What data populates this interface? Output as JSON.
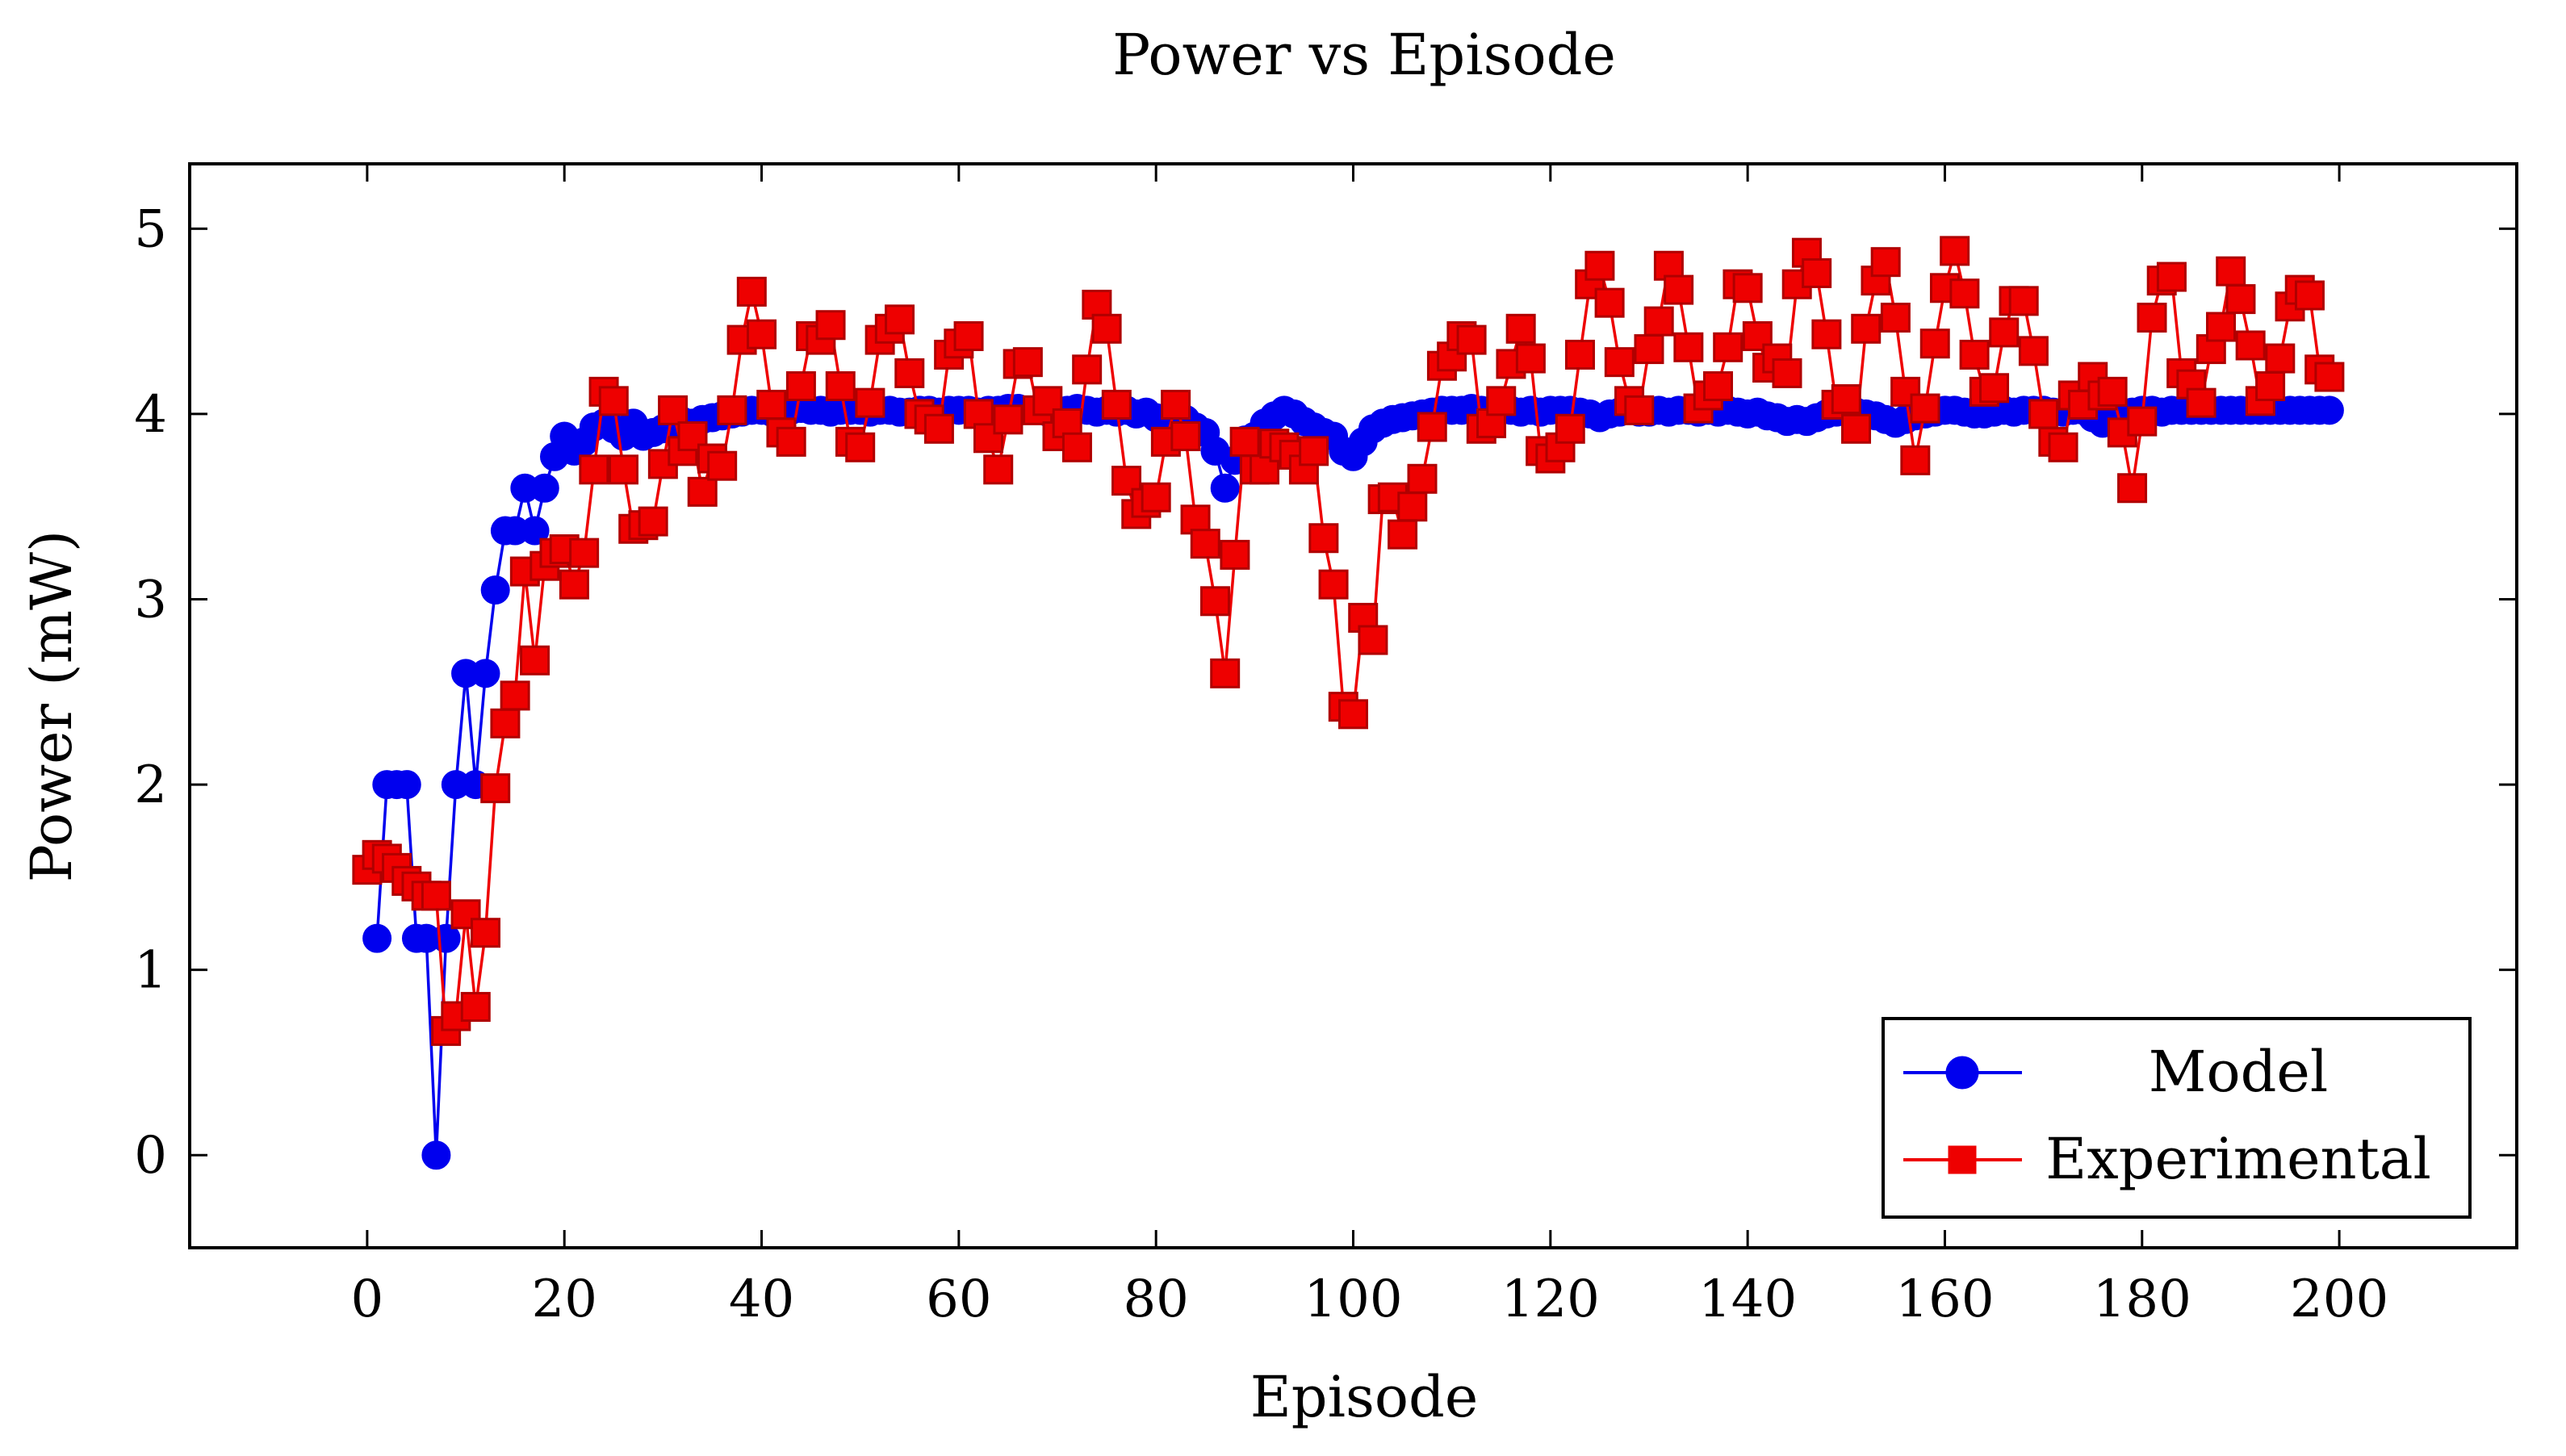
{
  "colors": {
    "model": "#0000ee",
    "experimental": "#ee0000",
    "axis": "#000000",
    "background": "#ffffff"
  },
  "chart_data": {
    "type": "line",
    "title": "Power vs Episode",
    "xlabel": "Episode",
    "ylabel": "Power (mW)",
    "xlim": [
      -18,
      218
    ],
    "ylim": [
      -0.5,
      5.35
    ],
    "xticks": [
      0,
      20,
      40,
      60,
      80,
      100,
      120,
      140,
      160,
      180,
      200
    ],
    "yticks": [
      0,
      1,
      2,
      3,
      4,
      5
    ],
    "grid": false,
    "legend_position": "bottom-right",
    "series": [
      {
        "name": "Model",
        "marker": "circle",
        "color": "#0000ee",
        "x": [
          1,
          2,
          3,
          4,
          5,
          6,
          7,
          8,
          9,
          10,
          11,
          12,
          13,
          14,
          15,
          16,
          17,
          18,
          19,
          20,
          21,
          22,
          23,
          24,
          25,
          26,
          27,
          28,
          29,
          30,
          31,
          32,
          33,
          34,
          35,
          36,
          37,
          38,
          39,
          40,
          41,
          42,
          43,
          44,
          45,
          46,
          47,
          48,
          49,
          50,
          51,
          52,
          53,
          54,
          55,
          56,
          57,
          58,
          59,
          60,
          61,
          62,
          63,
          64,
          65,
          66,
          67,
          68,
          69,
          70,
          71,
          72,
          73,
          74,
          75,
          76,
          77,
          78,
          79,
          80,
          81,
          82,
          83,
          84,
          85,
          86,
          87,
          88,
          89,
          90,
          91,
          92,
          93,
          94,
          95,
          96,
          97,
          98,
          99,
          100,
          101,
          102,
          103,
          104,
          105,
          106,
          107,
          108,
          109,
          110,
          111,
          112,
          113,
          114,
          115,
          116,
          117,
          118,
          119,
          120,
          121,
          122,
          123,
          124,
          125,
          126,
          127,
          128,
          129,
          130,
          131,
          132,
          133,
          134,
          135,
          136,
          137,
          138,
          139,
          140,
          141,
          142,
          143,
          144,
          145,
          146,
          147,
          148,
          149,
          150,
          151,
          152,
          153,
          154,
          155,
          156,
          157,
          158,
          159,
          160,
          161,
          162,
          163,
          164,
          165,
          166,
          167,
          168,
          169,
          170,
          171,
          172,
          173,
          174,
          175,
          176,
          177,
          178,
          179,
          180,
          181,
          182,
          183,
          184,
          185,
          186,
          187,
          188,
          189,
          190,
          191,
          192,
          193,
          194,
          195,
          196,
          197,
          198,
          199
        ],
        "values": [
          1.17,
          2.0,
          2.0,
          2.0,
          1.17,
          1.17,
          0.0,
          1.17,
          2.0,
          2.6,
          2.0,
          2.6,
          3.05,
          3.37,
          3.37,
          3.6,
          3.37,
          3.6,
          3.77,
          3.88,
          3.8,
          3.85,
          3.93,
          3.95,
          3.92,
          3.88,
          3.95,
          3.88,
          3.9,
          3.92,
          3.94,
          3.96,
          3.95,
          3.97,
          3.98,
          3.99,
          4.0,
          4.01,
          4.02,
          4.02,
          4.01,
          4.02,
          4.02,
          4.03,
          4.02,
          4.02,
          4.01,
          4.02,
          4.02,
          4.02,
          4.01,
          4.02,
          4.02,
          4.01,
          4.01,
          4.02,
          4.02,
          4.01,
          4.02,
          4.02,
          4.02,
          4.01,
          4.02,
          4.02,
          4.03,
          4.03,
          4.02,
          4.02,
          4.01,
          4.02,
          4.02,
          4.03,
          4.02,
          4.01,
          4.02,
          4.01,
          4.02,
          4.0,
          4.01,
          3.98,
          3.96,
          3.95,
          3.97,
          3.93,
          3.9,
          3.8,
          3.6,
          3.75,
          3.86,
          3.88,
          3.95,
          3.99,
          4.02,
          4.0,
          3.96,
          3.93,
          3.9,
          3.88,
          3.8,
          3.77,
          3.85,
          3.92,
          3.95,
          3.97,
          3.98,
          3.99,
          4.0,
          4.01,
          4.02,
          4.02,
          4.02,
          4.03,
          4.02,
          4.02,
          4.02,
          4.02,
          4.01,
          4.02,
          4.01,
          4.02,
          4.02,
          4.02,
          4.01,
          4.0,
          3.98,
          4.0,
          4.01,
          4.02,
          4.01,
          4.01,
          4.02,
          4.01,
          4.02,
          4.02,
          4.01,
          4.02,
          4.01,
          4.02,
          4.01,
          4.0,
          4.01,
          3.99,
          3.98,
          3.96,
          3.97,
          3.96,
          3.98,
          4.0,
          4.01,
          4.02,
          4.01,
          4.0,
          3.99,
          3.97,
          3.95,
          3.97,
          3.99,
          4.0,
          4.01,
          4.02,
          4.02,
          4.01,
          4.0,
          4.0,
          4.01,
          4.02,
          4.01,
          4.02,
          4.02,
          4.02,
          4.01,
          4.01,
          4.02,
          4.02,
          3.98,
          3.95,
          3.97,
          3.99,
          4.01,
          4.02,
          4.02,
          4.01,
          4.02,
          4.02,
          4.02,
          4.02,
          4.02,
          4.02,
          4.02,
          4.02,
          4.02,
          4.02,
          4.02,
          4.02,
          4.02,
          4.02,
          4.02,
          4.02,
          4.02
        ]
      },
      {
        "name": "Experimental",
        "marker": "square",
        "color": "#ee0000",
        "x": [
          0,
          1,
          2,
          3,
          4,
          5,
          6,
          7,
          8,
          9,
          10,
          11,
          12,
          13,
          14,
          15,
          16,
          17,
          18,
          19,
          20,
          21,
          22,
          23,
          24,
          25,
          26,
          27,
          28,
          29,
          30,
          31,
          32,
          33,
          34,
          35,
          36,
          37,
          38,
          39,
          40,
          41,
          42,
          43,
          44,
          45,
          46,
          47,
          48,
          49,
          50,
          51,
          52,
          53,
          54,
          55,
          56,
          57,
          58,
          59,
          60,
          61,
          62,
          63,
          64,
          65,
          66,
          67,
          68,
          69,
          70,
          71,
          72,
          73,
          74,
          75,
          76,
          77,
          78,
          79,
          80,
          81,
          82,
          83,
          84,
          85,
          86,
          87,
          88,
          89,
          90,
          91,
          92,
          93,
          94,
          95,
          96,
          97,
          98,
          99,
          100,
          101,
          102,
          103,
          104,
          105,
          106,
          107,
          108,
          109,
          110,
          111,
          112,
          113,
          114,
          115,
          116,
          117,
          118,
          119,
          120,
          121,
          122,
          123,
          124,
          125,
          126,
          127,
          128,
          129,
          130,
          131,
          132,
          133,
          134,
          135,
          136,
          137,
          138,
          139,
          140,
          141,
          142,
          143,
          144,
          145,
          146,
          147,
          148,
          149,
          150,
          151,
          152,
          153,
          154,
          155,
          156,
          157,
          158,
          159,
          160,
          161,
          162,
          163,
          164,
          165,
          166,
          167,
          168,
          169,
          170,
          171,
          172,
          173,
          174,
          175,
          176,
          177,
          178,
          179,
          180,
          181,
          182,
          183,
          184,
          185,
          186,
          187,
          188,
          189,
          190,
          191,
          192,
          193,
          194,
          195,
          196,
          197,
          198,
          199
        ],
        "values": [
          1.54,
          1.62,
          1.6,
          1.55,
          1.48,
          1.45,
          1.4,
          1.4,
          0.67,
          0.75,
          1.3,
          0.8,
          1.2,
          1.98,
          2.33,
          2.48,
          3.15,
          2.67,
          3.18,
          3.25,
          3.27,
          3.08,
          3.25,
          3.7,
          4.12,
          4.07,
          3.7,
          3.38,
          3.4,
          3.42,
          3.73,
          4.02,
          3.8,
          3.88,
          3.58,
          3.76,
          3.72,
          4.02,
          4.4,
          4.66,
          4.43,
          4.05,
          3.9,
          3.85,
          4.15,
          4.42,
          4.4,
          4.48,
          4.15,
          3.85,
          3.82,
          4.06,
          4.4,
          4.46,
          4.51,
          4.22,
          4.0,
          3.97,
          3.92,
          4.32,
          4.38,
          4.42,
          4.0,
          3.87,
          3.7,
          3.97,
          4.27,
          4.28,
          4.02,
          4.07,
          3.88,
          3.95,
          3.82,
          4.24,
          4.59,
          4.46,
          4.05,
          3.64,
          3.46,
          3.52,
          3.55,
          3.85,
          4.05,
          3.88,
          3.43,
          3.3,
          2.99,
          2.6,
          3.24,
          3.85,
          3.7,
          3.7,
          3.84,
          3.82,
          3.78,
          3.7,
          3.8,
          3.33,
          3.08,
          2.42,
          2.38,
          2.9,
          2.78,
          3.54,
          3.55,
          3.35,
          3.5,
          3.65,
          3.93,
          4.26,
          4.31,
          4.42,
          4.4,
          3.92,
          3.95,
          4.07,
          4.27,
          4.46,
          4.3,
          3.8,
          3.76,
          3.82,
          3.92,
          4.32,
          4.7,
          4.8,
          4.6,
          4.28,
          4.07,
          4.02,
          4.35,
          4.5,
          4.8,
          4.67,
          4.36,
          4.03,
          4.1,
          4.15,
          4.36,
          4.7,
          4.68,
          4.42,
          4.25,
          4.3,
          4.22,
          4.7,
          4.87,
          4.76,
          4.43,
          4.05,
          4.08,
          3.92,
          4.46,
          4.72,
          4.82,
          4.52,
          4.12,
          3.75,
          4.03,
          4.38,
          4.68,
          4.88,
          4.65,
          4.32,
          4.12,
          4.14,
          4.44,
          4.61,
          4.61,
          4.34,
          4.0,
          3.85,
          3.82,
          4.1,
          4.05,
          4.2,
          4.1,
          4.12,
          3.9,
          3.6,
          3.96,
          4.52,
          4.72,
          4.74,
          4.22,
          4.16,
          4.06,
          4.35,
          4.47,
          4.77,
          4.62,
          4.37,
          4.07,
          4.15,
          4.3,
          4.58,
          4.67,
          4.64,
          4.24,
          4.2
        ]
      }
    ]
  }
}
